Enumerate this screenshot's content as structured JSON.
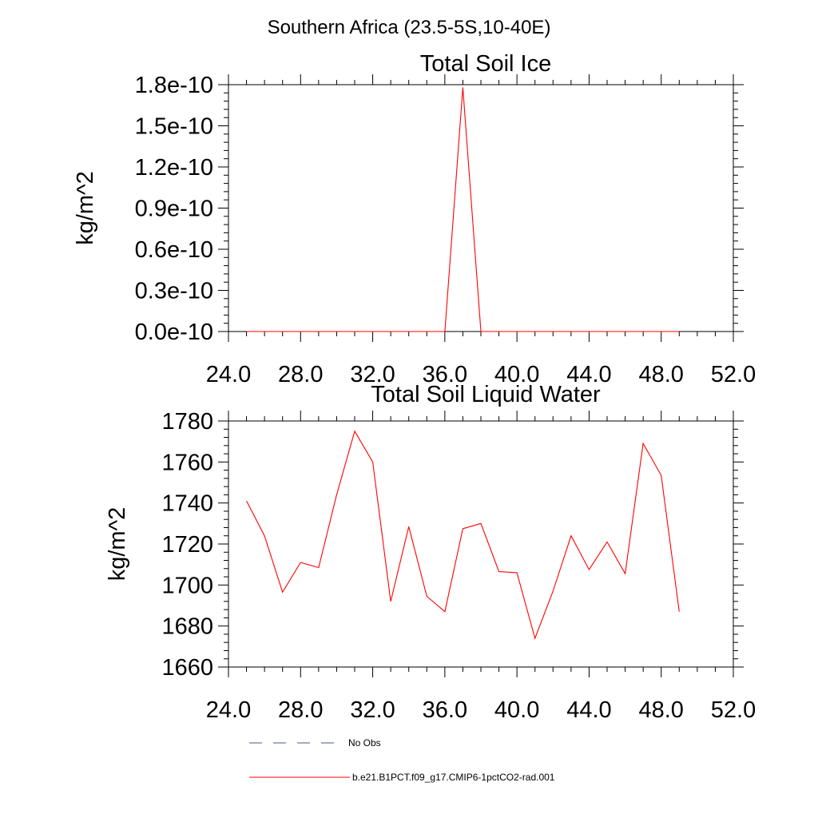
{
  "page": {
    "title": "Southern Africa (23.5-5S,10-40E)"
  },
  "chart_data": [
    {
      "type": "line",
      "title": "Total Soil Ice",
      "xlabel": "",
      "ylabel": "kg/m^2",
      "xlim": [
        24,
        52
      ],
      "ylim": [
        0,
        1.8e-10
      ],
      "xticks": [
        "24.0",
        "28.0",
        "32.0",
        "36.0",
        "40.0",
        "44.0",
        "48.0",
        "52.0"
      ],
      "xtick_values": [
        24,
        28,
        32,
        36,
        40,
        44,
        48,
        52
      ],
      "yticks": [
        "0.0e-10",
        "0.3e-10",
        "0.6e-10",
        "0.9e-10",
        "1.2e-10",
        "1.5e-10",
        "1.8e-10"
      ],
      "ytick_values": [
        0,
        3e-11,
        6e-11,
        9e-11,
        1.2e-10,
        1.5e-10,
        1.8e-10
      ],
      "series": [
        {
          "name": "b.e21.B1PCT.f09_g17.CMIP6-1pctCO2-rad.001",
          "color": "#ff0000",
          "x": [
            25,
            26,
            27,
            28,
            29,
            30,
            31,
            32,
            33,
            34,
            35,
            36,
            37,
            38,
            39,
            40,
            41,
            42,
            43,
            44,
            45,
            46,
            47,
            48,
            49
          ],
          "y": [
            0,
            0,
            0,
            0,
            0,
            0,
            0,
            0,
            0,
            0,
            0,
            0,
            1.78e-10,
            0,
            0,
            0,
            0,
            0,
            0,
            0,
            0,
            0,
            0,
            0,
            0
          ]
        }
      ]
    },
    {
      "type": "line",
      "title": "Total Soil Liquid Water",
      "xlabel": "",
      "ylabel": "kg/m^2",
      "xlim": [
        24,
        52
      ],
      "ylim": [
        1660,
        1780
      ],
      "xticks": [
        "24.0",
        "28.0",
        "32.0",
        "36.0",
        "40.0",
        "44.0",
        "48.0",
        "52.0"
      ],
      "xtick_values": [
        24,
        28,
        32,
        36,
        40,
        44,
        48,
        52
      ],
      "yticks": [
        "1660",
        "1680",
        "1700",
        "1720",
        "1740",
        "1760",
        "1780"
      ],
      "ytick_values": [
        1660,
        1680,
        1700,
        1720,
        1740,
        1760,
        1780
      ],
      "series": [
        {
          "name": "b.e21.B1PCT.f09_g17.CMIP6-1pctCO2-rad.001",
          "color": "#ff0000",
          "x": [
            25,
            26,
            27,
            28,
            29,
            30,
            31,
            32,
            33,
            34,
            35,
            36,
            37,
            38,
            39,
            40,
            41,
            42,
            43,
            44,
            45,
            46,
            47,
            48,
            49
          ],
          "y": [
            1741,
            1724,
            1696.5,
            1711,
            1708.5,
            1744,
            1775,
            1760,
            1692,
            1728.5,
            1694.5,
            1687,
            1727.5,
            1730,
            1706.5,
            1706,
            1674,
            1697,
            1724,
            1707.5,
            1721,
            1705.5,
            1769,
            1753.5,
            1687
          ]
        }
      ]
    }
  ],
  "legend": {
    "items": [
      {
        "label": "No Obs",
        "color": "#4a5a7a",
        "style": "dashed"
      },
      {
        "label": "b.e21.B1PCT.f09_g17.CMIP6-1pctCO2-rad.001",
        "color": "#ff0000",
        "style": "solid"
      }
    ]
  }
}
